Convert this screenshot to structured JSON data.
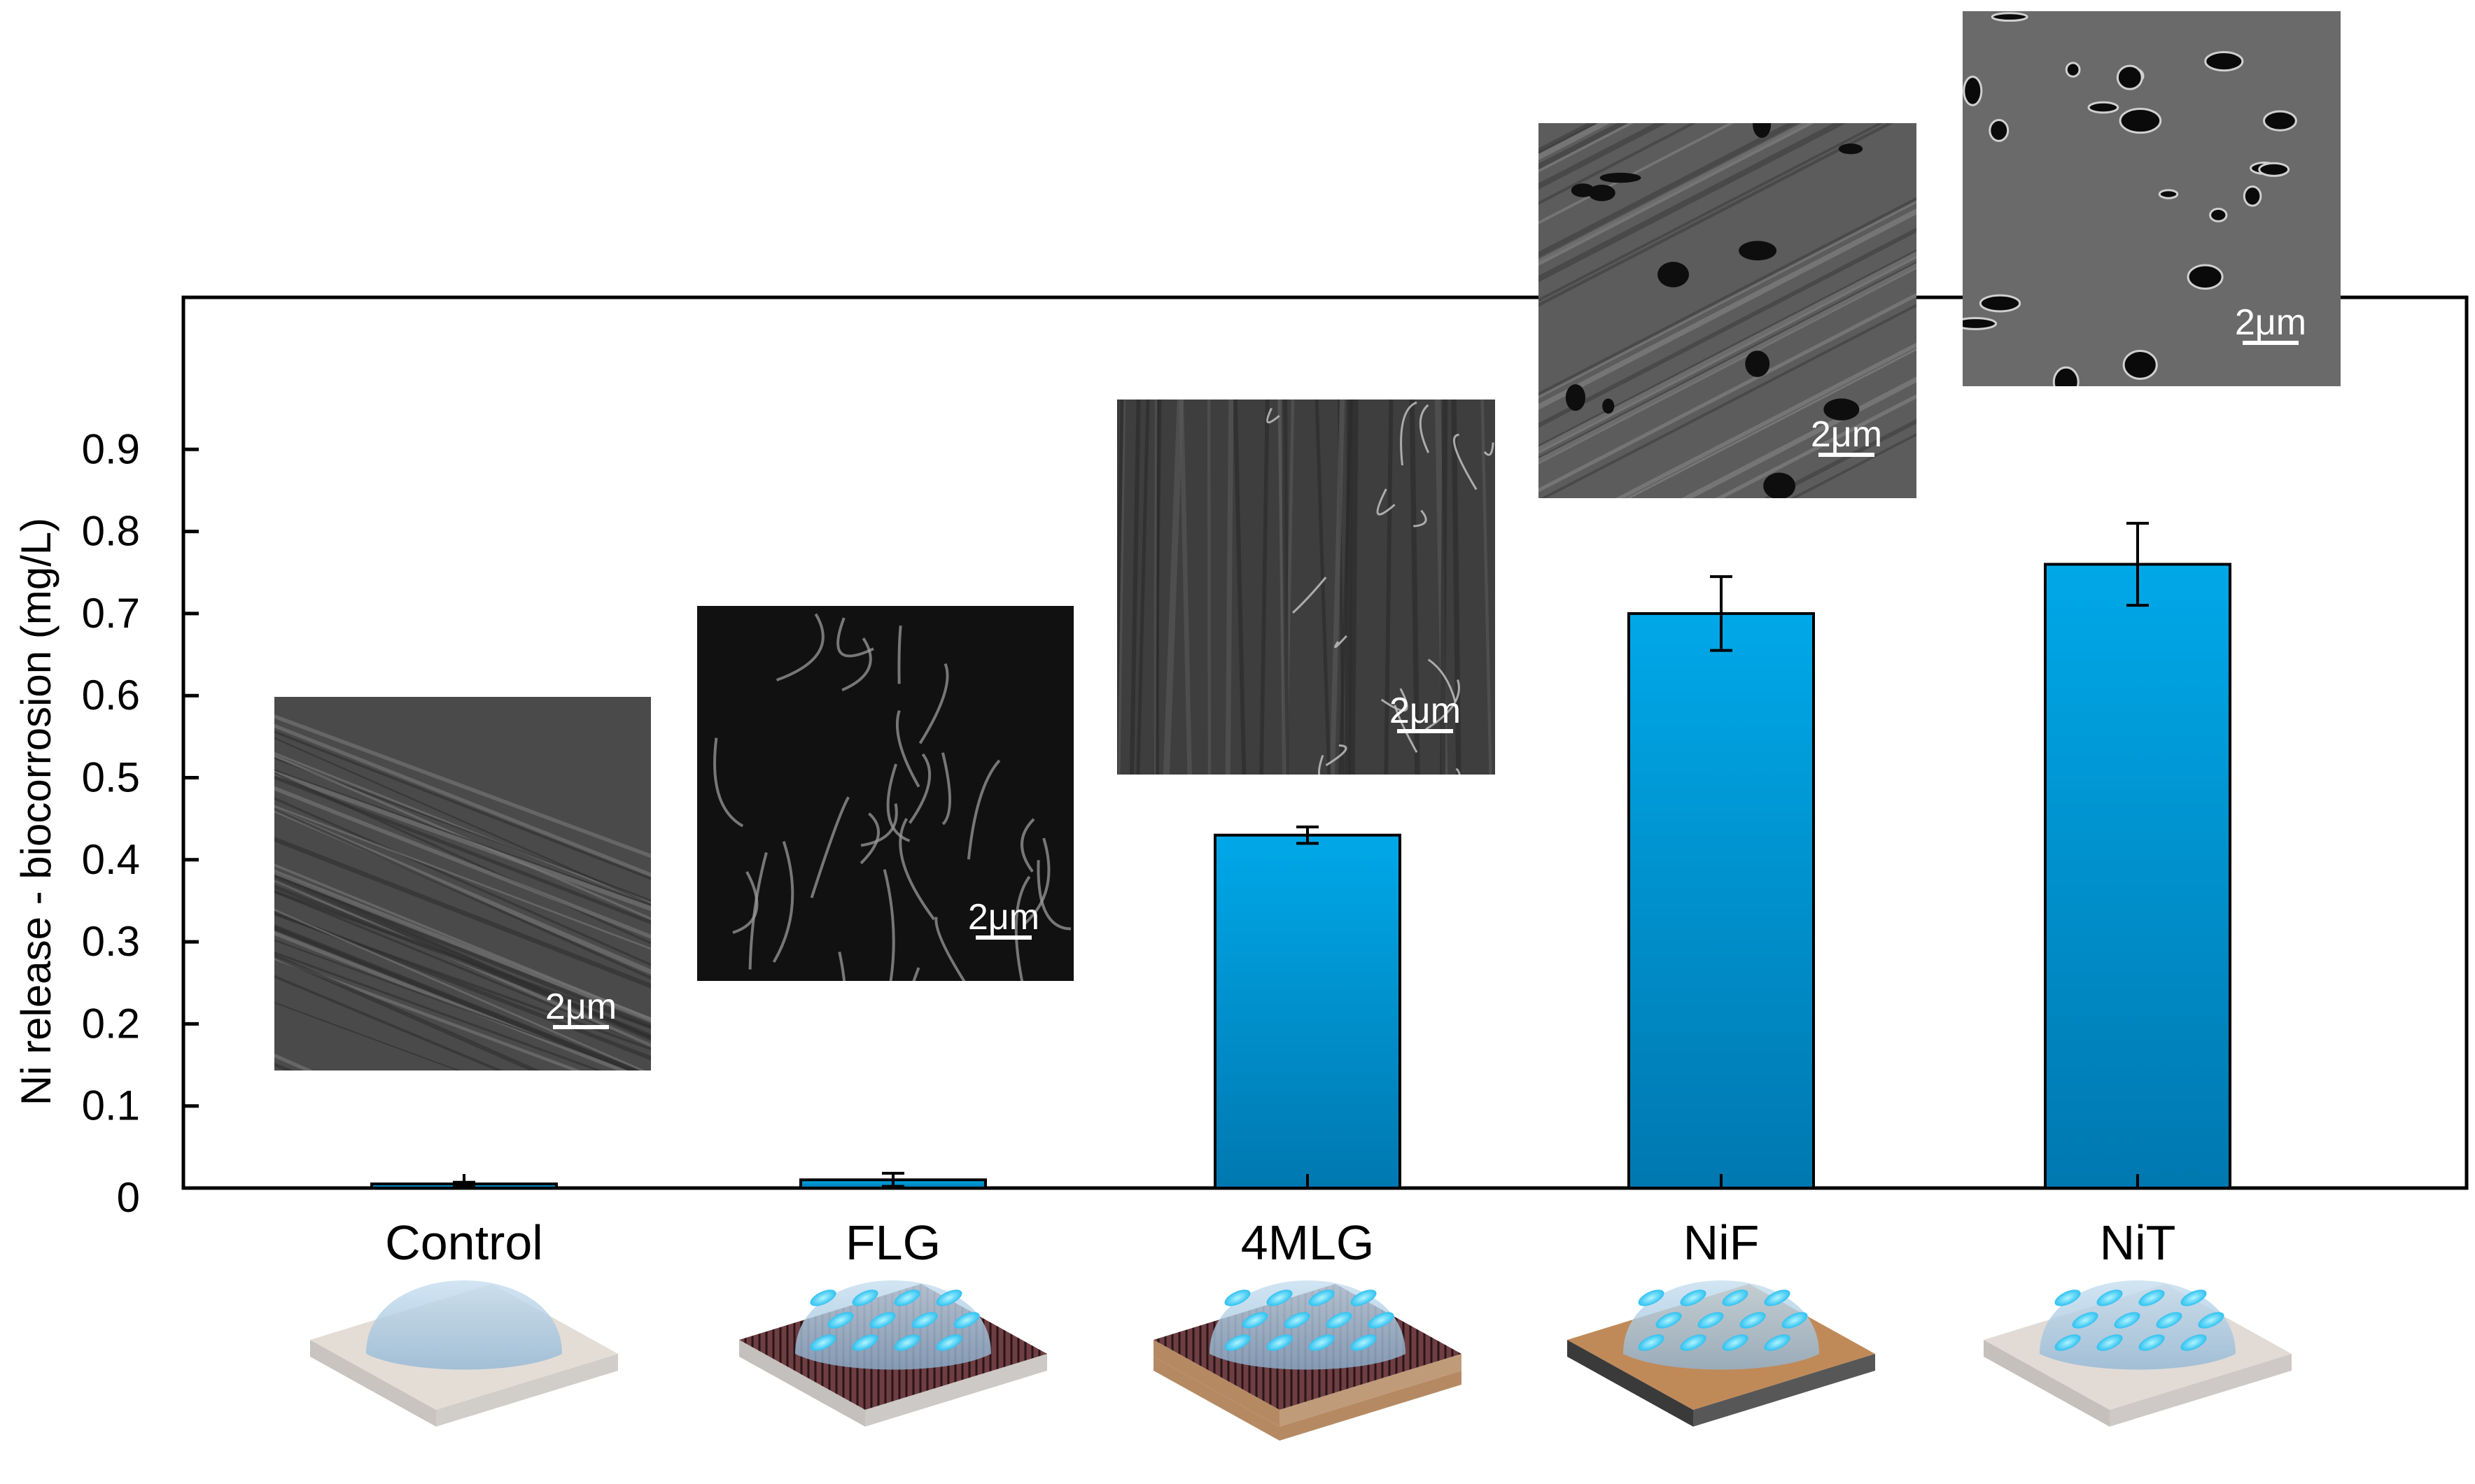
{
  "chart_data": {
    "type": "bar",
    "categories": [
      "Control",
      "FLG",
      "4MLG",
      "NiF",
      "NiT"
    ],
    "values": [
      0.005,
      0.01,
      0.43,
      0.7,
      0.76
    ],
    "errors": [
      0.002,
      0.008,
      0.01,
      0.045,
      0.05
    ],
    "title": "",
    "xlabel": "",
    "ylabel": "Ni release - biocorrosion (mg/L)",
    "ylim": [
      0,
      1.08
    ],
    "yticks": [
      0,
      0.1,
      0.2,
      0.3,
      0.4,
      0.5,
      0.6,
      0.7,
      0.8,
      0.9
    ],
    "ytick_labels": [
      "0",
      "0.1",
      "0.2",
      "0.3",
      "0.4",
      "0.5",
      "0.6",
      "0.7",
      "0.8",
      "0.9"
    ],
    "grid": false,
    "bar_color": "#00a8e8",
    "bar_color_dark": "#0078b0",
    "insets": [
      {
        "category": "Control",
        "kind": "SEM micrograph",
        "scale_label": "2μm"
      },
      {
        "category": "FLG",
        "kind": "SEM micrograph",
        "scale_label": "2μm"
      },
      {
        "category": "4MLG",
        "kind": "SEM micrograph",
        "scale_label": "2μm"
      },
      {
        "category": "NiF",
        "kind": "SEM micrograph",
        "scale_label": "2μm"
      },
      {
        "category": "NiT",
        "kind": "SEM micrograph",
        "scale_label": "2μm"
      }
    ]
  }
}
